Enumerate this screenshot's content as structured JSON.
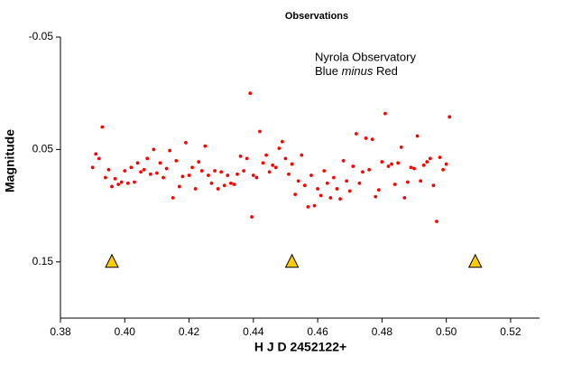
{
  "chart_data": {
    "type": "scatter",
    "title": "Observations",
    "annotation": {
      "line1": "Nyrola Observatory",
      "line2": [
        "Blue",
        "minus",
        "Red"
      ]
    },
    "x_label": "H J D  2452122+",
    "y_label": "Magnitude",
    "xlim": [
      0.38,
      0.529
    ],
    "ylim": [
      -0.05,
      0.2
    ],
    "y_inverted": true,
    "xticks": [
      0.38,
      {
        "value": 0.4,
        "label": "0.40"
      },
      0.42,
      0.44,
      0.46,
      0.48,
      {
        "value": 0.5,
        "label": "0.50"
      },
      0.52
    ],
    "yticks": [
      -0.05,
      0.05,
      0.15
    ],
    "series": [
      {
        "color": "#ff0000",
        "marker": "circle",
        "x": [
          0.39,
          0.391,
          0.392,
          0.393,
          0.394,
          0.395,
          0.396,
          0.397,
          0.398,
          0.399,
          0.4,
          0.401,
          0.402,
          0.403,
          0.404,
          0.405,
          0.406,
          0.407,
          0.408,
          0.409,
          0.41,
          0.411,
          0.412,
          0.413,
          0.414,
          0.415,
          0.416,
          0.417,
          0.418,
          0.419,
          0.42,
          0.421,
          0.422,
          0.423,
          0.424,
          0.425,
          0.426,
          0.427,
          0.428,
          0.429,
          0.43,
          0.431,
          0.432,
          0.433,
          0.434,
          0.435,
          0.436,
          0.437,
          0.438,
          0.439,
          0.4395,
          0.44,
          0.441,
          0.442,
          0.443,
          0.444,
          0.445,
          0.446,
          0.447,
          0.448,
          0.449,
          0.45,
          0.451,
          0.452,
          0.453,
          0.454,
          0.455,
          0.456,
          0.457,
          0.458,
          0.459,
          0.46,
          0.461,
          0.462,
          0.463,
          0.464,
          0.465,
          0.466,
          0.467,
          0.468,
          0.469,
          0.47,
          0.471,
          0.472,
          0.473,
          0.474,
          0.475,
          0.476,
          0.477,
          0.478,
          0.479,
          0.48,
          0.481,
          0.482,
          0.483,
          0.484,
          0.485,
          0.486,
          0.487,
          0.488,
          0.489,
          0.49,
          0.491,
          0.492,
          0.493,
          0.494,
          0.495,
          0.496,
          0.497,
          0.498,
          0.499,
          0.5,
          0.501
        ],
        "values": [
          0.066,
          0.054,
          0.058,
          0.03,
          0.075,
          0.068,
          0.083,
          0.076,
          0.081,
          0.079,
          0.069,
          0.08,
          0.066,
          0.079,
          0.062,
          0.07,
          0.068,
          0.058,
          0.072,
          0.05,
          0.071,
          0.062,
          0.075,
          0.067,
          0.051,
          0.093,
          0.06,
          0.083,
          0.074,
          0.044,
          0.073,
          0.066,
          0.085,
          0.061,
          0.069,
          0.047,
          0.073,
          0.08,
          0.069,
          0.085,
          0.07,
          0.082,
          0.073,
          0.08,
          0.081,
          0.072,
          0.056,
          0.069,
          0.058,
          0.0,
          0.11,
          0.073,
          0.075,
          0.034,
          0.062,
          0.055,
          0.07,
          0.064,
          0.066,
          0.049,
          0.043,
          0.058,
          0.072,
          0.063,
          0.09,
          0.078,
          0.055,
          0.082,
          0.101,
          0.073,
          0.1,
          0.085,
          0.091,
          0.069,
          0.08,
          0.093,
          0.075,
          0.085,
          0.094,
          0.06,
          0.078,
          0.087,
          0.065,
          0.036,
          0.08,
          0.07,
          0.04,
          0.068,
          0.041,
          0.092,
          0.086,
          0.061,
          0.018,
          0.065,
          0.063,
          0.081,
          0.062,
          0.048,
          0.093,
          0.079,
          0.066,
          0.067,
          0.038,
          0.078,
          0.064,
          0.061,
          0.058,
          0.082,
          0.114,
          0.057,
          0.068,
          0.063,
          0.021
        ]
      },
      {
        "color": "#ffcc00",
        "marker": "triangle",
        "x": [
          0.396,
          0.452,
          0.509
        ],
        "values": [
          0.15,
          0.15,
          0.15
        ]
      }
    ]
  }
}
